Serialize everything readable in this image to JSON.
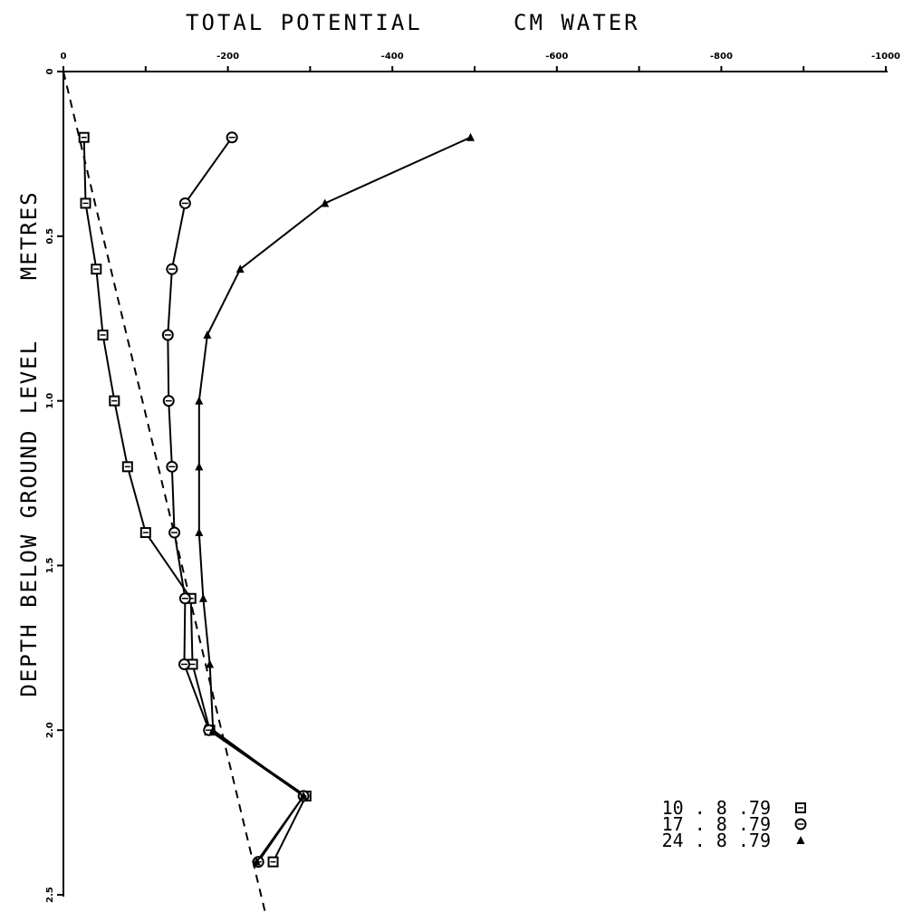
{
  "chart_data": {
    "type": "line",
    "title_left": "TOTAL POTENTIAL",
    "title_right": "CM WATER",
    "ylabel": "DEPTH BELOW GROUND LEVEL    METRES",
    "xlim": [
      0,
      -1000
    ],
    "ylim": [
      0,
      2.5
    ],
    "x_ticks": [
      0,
      -100,
      -200,
      -300,
      -400,
      -500,
      -600,
      -700,
      -800,
      -900,
      -1000
    ],
    "x_tick_labels": [
      {
        "value": 0,
        "label": "0"
      },
      {
        "value": -200,
        "label": "-200"
      },
      {
        "value": -400,
        "label": "-400"
      },
      {
        "value": -600,
        "label": "-600"
      },
      {
        "value": -800,
        "label": "-800"
      },
      {
        "value": -1000,
        "label": "-1000"
      }
    ],
    "y_ticks": [
      0,
      0.5,
      1.0,
      1.5,
      2.0,
      2.5
    ],
    "y_tick_labels": [
      {
        "value": 0,
        "label": "0"
      },
      {
        "value": 0.5,
        "label": "0.5"
      },
      {
        "value": 1.0,
        "label": "1.0"
      },
      {
        "value": 1.5,
        "label": "1.5"
      },
      {
        "value": 2.0,
        "label": "2.0"
      },
      {
        "value": 2.5,
        "label": "2.5"
      }
    ],
    "grid": false,
    "legend_position": "bottom-right",
    "series": [
      {
        "name": "10 . 8 .79",
        "marker": "square",
        "points": [
          [
            -25,
            0.2
          ],
          [
            -27,
            0.4
          ],
          [
            -40,
            0.6
          ],
          [
            -48,
            0.8
          ],
          [
            -62,
            1.0
          ],
          [
            -78,
            1.2
          ],
          [
            -100,
            1.4
          ],
          [
            -155,
            1.6
          ],
          [
            -157,
            1.8
          ],
          [
            -178,
            2.0
          ],
          [
            -295,
            2.2
          ],
          [
            -255,
            2.4
          ]
        ]
      },
      {
        "name": "17 . 8 .79",
        "marker": "circle",
        "points": [
          [
            -205,
            0.2
          ],
          [
            -148,
            0.4
          ],
          [
            -132,
            0.6
          ],
          [
            -127,
            0.8
          ],
          [
            -128,
            1.0
          ],
          [
            -132,
            1.2
          ],
          [
            -135,
            1.4
          ],
          [
            -148,
            1.6
          ],
          [
            -147,
            1.8
          ],
          [
            -177,
            2.0
          ],
          [
            -292,
            2.2
          ],
          [
            -237,
            2.4
          ]
        ]
      },
      {
        "name": "24 . 8 .79",
        "marker": "triangle",
        "points": [
          [
            -495,
            0.2
          ],
          [
            -318,
            0.4
          ],
          [
            -215,
            0.6
          ],
          [
            -175,
            0.8
          ],
          [
            -165,
            1.0
          ],
          [
            -165,
            1.2
          ],
          [
            -165,
            1.4
          ],
          [
            -170,
            1.6
          ],
          [
            -178,
            1.8
          ],
          [
            -182,
            2.0
          ],
          [
            -292,
            2.2
          ],
          [
            -235,
            2.4
          ]
        ]
      }
    ],
    "reference_line": {
      "style": "dashed",
      "points": [
        [
          0,
          0
        ],
        [
          -245,
          2.55
        ]
      ]
    }
  }
}
